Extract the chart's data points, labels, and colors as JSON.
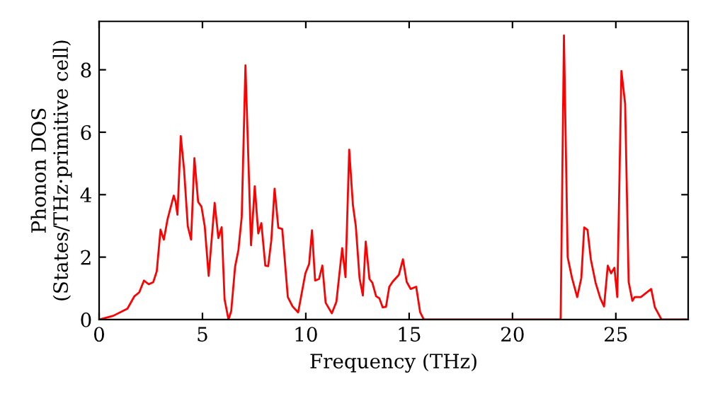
{
  "chart_data": {
    "type": "line",
    "xlabel": "Frequency (THz)",
    "ylabel": "Phonon DOS\n(States/THz·primitive cell)",
    "xlim": [
      0,
      28.5
    ],
    "ylim": [
      0,
      9.55
    ],
    "xticks": [
      0,
      5,
      10,
      15,
      20,
      25
    ],
    "yticks": [
      0,
      2,
      4,
      6,
      8
    ],
    "marker": "none",
    "line_style": "solid",
    "series": [
      {
        "color": "#ff0000",
        "x": [
          0,
          0.68,
          1.37,
          1.71,
          1.94,
          2.17,
          2.4,
          2.62,
          2.79,
          2.97,
          3.13,
          3.31,
          3.61,
          3.7,
          3.79,
          3.95,
          4.11,
          4.29,
          4.45,
          4.61,
          4.79,
          4.95,
          5.11,
          5.3,
          5.59,
          5.77,
          5.93,
          6.07,
          6.26,
          6.39,
          6.58,
          6.74,
          6.9,
          7.08,
          7.35,
          7.53,
          7.7,
          7.85,
          8.04,
          8.18,
          8.33,
          8.49,
          8.67,
          8.86,
          9.13,
          9.36,
          9.63,
          9.98,
          10.16,
          10.3,
          10.45,
          10.64,
          10.8,
          10.96,
          11.26,
          11.48,
          11.76,
          11.92,
          12.1,
          12.28,
          12.42,
          12.6,
          12.76,
          12.9,
          13.08,
          13.22,
          13.4,
          13.56,
          13.72,
          13.88,
          14.04,
          14.2,
          14.5,
          14.7,
          14.88,
          15.07,
          15.34,
          15.53,
          15.71,
          22.33,
          22.49,
          22.67,
          22.88,
          23.13,
          23.33,
          23.47,
          23.63,
          23.79,
          24.02,
          24.25,
          24.43,
          24.61,
          24.77,
          24.93,
          25.07,
          25.27,
          25.45,
          25.62,
          25.8,
          25.91,
          26.21,
          26.71,
          26.89,
          27.21,
          28.4
        ],
        "values": [
          0,
          0.12,
          0.35,
          0.75,
          0.87,
          1.25,
          1.13,
          1.2,
          1.55,
          2.88,
          2.56,
          3.21,
          3.97,
          3.77,
          3.36,
          5.88,
          4.8,
          2.99,
          2.56,
          5.17,
          3.77,
          3.62,
          2.99,
          1.4,
          3.74,
          2.61,
          2.96,
          0.65,
          0,
          0.27,
          1.7,
          2.23,
          3.29,
          8.14,
          2.38,
          4.27,
          2.76,
          3.09,
          1.73,
          1.71,
          2.53,
          4.19,
          2.94,
          2.9,
          0.72,
          0.42,
          0.23,
          1.48,
          1.78,
          2.86,
          1.25,
          1.3,
          1.73,
          0.54,
          0.2,
          0.57,
          2.29,
          1.36,
          5.44,
          3.66,
          2.99,
          1.33,
          0.77,
          2.5,
          1.3,
          1.18,
          0.75,
          0.68,
          0.39,
          0.41,
          1.05,
          1.21,
          1.43,
          1.93,
          1.21,
          0.98,
          1.05,
          0.24,
          0,
          0,
          9.1,
          2.0,
          1.33,
          0.72,
          1.33,
          2.95,
          2.87,
          1.93,
          1.18,
          0.68,
          0.42,
          1.73,
          1.48,
          1.66,
          0.72,
          7.96,
          6.91,
          1.21,
          0.6,
          0.72,
          0.72,
          0.98,
          0.39,
          0,
          0
        ]
      }
    ]
  }
}
